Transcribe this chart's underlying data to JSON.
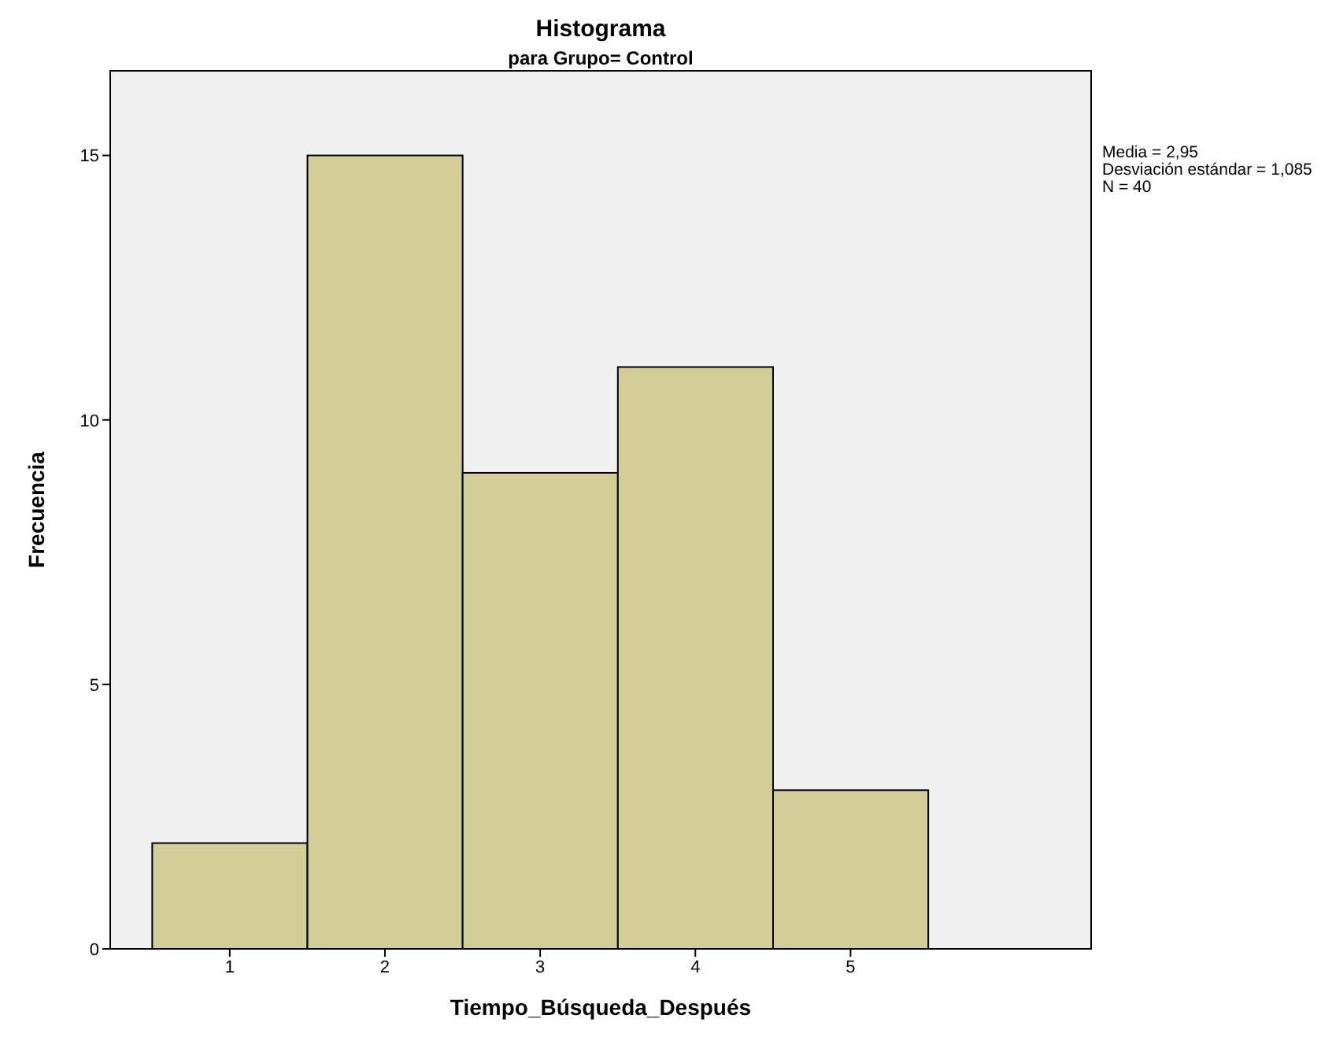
{
  "chart_data": {
    "type": "histogram",
    "title": "Histograma",
    "subtitle": "para Grupo= Control",
    "xlabel": "Tiempo_Búsqueda_Después",
    "ylabel": "Frecuencia",
    "bins": [
      0.5,
      1.5,
      2.5,
      3.5,
      4.5,
      5.5
    ],
    "values": [
      2,
      15,
      9,
      11,
      3
    ],
    "color": "#d3ce97",
    "xlim": [
      0.23,
      6.55
    ],
    "xticks": [
      1,
      2,
      3,
      4,
      5
    ],
    "ylim": [
      0,
      16.6
    ],
    "yticks": [
      0,
      5,
      10,
      15
    ],
    "annotations": [
      "Media = 2,95",
      "Desviación estándar = 1,085",
      "N = 40"
    ]
  }
}
